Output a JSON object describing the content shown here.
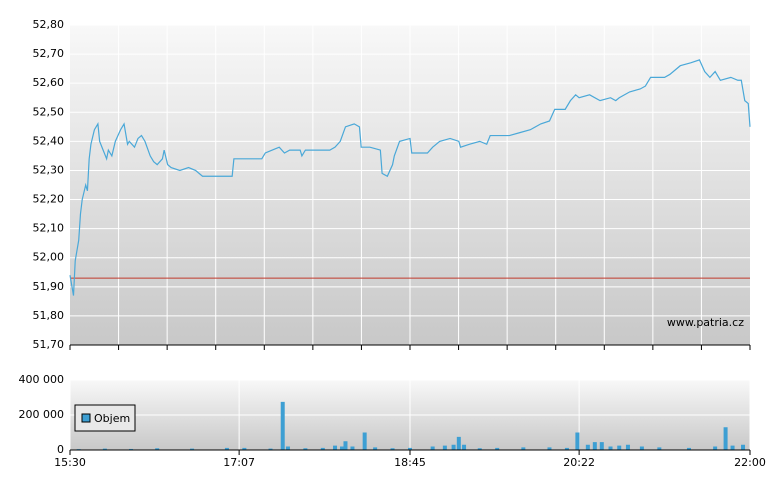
{
  "chart_data": [
    {
      "type": "line",
      "x": [
        930,
        932,
        933,
        935,
        936,
        937,
        939,
        940,
        941,
        942,
        944,
        946,
        947,
        949,
        951,
        952,
        954,
        956,
        959,
        961,
        963,
        964,
        967,
        969,
        971,
        973,
        976,
        978,
        980,
        983,
        984,
        986,
        988,
        993,
        998,
        1002,
        1006,
        1010,
        1016,
        1023,
        1024,
        1030,
        1040,
        1042,
        1046,
        1050,
        1053,
        1056,
        1062,
        1063,
        1065,
        1073,
        1079,
        1082,
        1085,
        1088,
        1093,
        1096,
        1097,
        1102,
        1108,
        1109,
        1112,
        1115,
        1116,
        1119,
        1125,
        1126,
        1131,
        1135,
        1138,
        1142,
        1148,
        1153,
        1154,
        1159,
        1165,
        1169,
        1171,
        1177,
        1182,
        1188,
        1194,
        1200,
        1205,
        1208,
        1214,
        1217,
        1220,
        1222,
        1228,
        1234,
        1240,
        1243,
        1245,
        1251,
        1257,
        1260,
        1263,
        1271,
        1274,
        1280,
        1286,
        1291,
        1294,
        1297,
        1300,
        1303,
        1309,
        1313,
        1315,
        1317,
        1319,
        1320
      ],
      "series": [
        {
          "color": "#4aa8d8",
          "values": [
            51.94,
            51.87,
            51.99,
            52.06,
            52.15,
            52.2,
            52.25,
            52.23,
            52.34,
            52.39,
            52.44,
            52.46,
            52.4,
            52.37,
            52.34,
            52.37,
            52.35,
            52.4,
            52.44,
            52.46,
            52.39,
            52.4,
            52.38,
            52.41,
            52.42,
            52.4,
            52.35,
            52.33,
            52.32,
            52.34,
            52.37,
            52.32,
            52.31,
            52.3,
            52.31,
            52.3,
            52.28,
            52.28,
            52.28,
            52.28,
            52.34,
            52.34,
            52.34,
            52.36,
            52.37,
            52.38,
            52.36,
            52.37,
            52.37,
            52.35,
            52.37,
            52.37,
            52.37,
            52.38,
            52.4,
            52.45,
            52.46,
            52.45,
            52.38,
            52.38,
            52.37,
            52.29,
            52.28,
            52.32,
            52.35,
            52.4,
            52.41,
            52.36,
            52.36,
            52.36,
            52.38,
            52.4,
            52.41,
            52.4,
            52.38,
            52.39,
            52.4,
            52.39,
            52.42,
            52.42,
            52.42,
            52.43,
            52.44,
            52.46,
            52.47,
            52.51,
            52.51,
            52.54,
            52.56,
            52.55,
            52.56,
            52.54,
            52.55,
            52.54,
            52.55,
            52.57,
            52.58,
            52.59,
            52.62,
            52.62,
            52.63,
            52.66,
            52.67,
            52.68,
            52.64,
            52.62,
            52.64,
            52.61,
            52.62,
            52.61,
            52.61,
            52.54,
            52.53,
            52.45
          ]
        }
      ],
      "reference_line": 51.93,
      "reference_color": "#c0392b",
      "xlim": [
        930,
        1320
      ],
      "ylim": [
        51.7,
        52.8
      ],
      "yticks": [
        {
          "value": 51.7,
          "label": "51,70"
        },
        {
          "value": 51.8,
          "label": "51,80"
        },
        {
          "value": 51.9,
          "label": "51,90"
        },
        {
          "value": 52.0,
          "label": "52,00"
        },
        {
          "value": 52.1,
          "label": "52,10"
        },
        {
          "value": 52.2,
          "label": "52,20"
        },
        {
          "value": 52.3,
          "label": "52,30"
        },
        {
          "value": 52.4,
          "label": "52,40"
        },
        {
          "value": 52.5,
          "label": "52,50"
        },
        {
          "value": 52.6,
          "label": "52,60"
        },
        {
          "value": 52.7,
          "label": "52,70"
        },
        {
          "value": 52.8,
          "label": "52,80"
        }
      ],
      "annotation": "www.patria.cz",
      "grid": true
    },
    {
      "type": "bar",
      "x": [
        935,
        950,
        965,
        980,
        1000,
        1020,
        1030,
        1045,
        1052,
        1055,
        1065,
        1075,
        1082,
        1086,
        1088,
        1092,
        1099,
        1105,
        1115,
        1125,
        1138,
        1145,
        1150,
        1153,
        1156,
        1165,
        1175,
        1190,
        1205,
        1215,
        1221,
        1227,
        1231,
        1235,
        1240,
        1245,
        1250,
        1258,
        1268,
        1285,
        1300,
        1306,
        1310,
        1316
      ],
      "series": [
        {
          "name": "Objem",
          "color": "#3d9fd3",
          "values": [
            5000,
            8000,
            6000,
            10000,
            8000,
            12000,
            12000,
            8000,
            275000,
            20000,
            10000,
            12000,
            25000,
            20000,
            50000,
            20000,
            100000,
            15000,
            10000,
            12000,
            20000,
            25000,
            30000,
            75000,
            30000,
            10000,
            12000,
            15000,
            15000,
            12000,
            100000,
            30000,
            45000,
            45000,
            20000,
            25000,
            30000,
            20000,
            15000,
            12000,
            20000,
            130000,
            25000,
            30000
          ]
        }
      ],
      "xlim": [
        930,
        1320
      ],
      "ylim": [
        0,
        400000
      ],
      "xticks": [
        {
          "value": 930,
          "label": "15:30"
        },
        {
          "value": 1027,
          "label": "17:07"
        },
        {
          "value": 1125,
          "label": "18:45"
        },
        {
          "value": 1222,
          "label": "20:22"
        },
        {
          "value": 1320,
          "label": "22:00"
        }
      ],
      "yticks": [
        0,
        {
          "value": 200000,
          "label": "200 000"
        },
        {
          "value": 400000,
          "label": "400 000"
        }
      ],
      "grid": true,
      "legend": "upper-left"
    }
  ]
}
